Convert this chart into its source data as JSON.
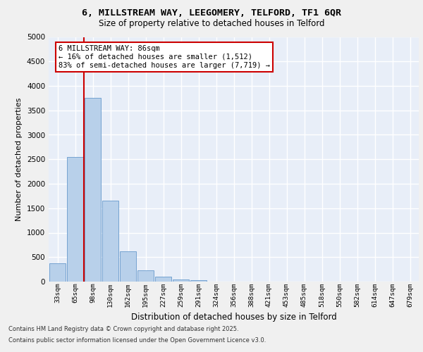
{
  "title_line1": "6, MILLSTREAM WAY, LEEGOMERY, TELFORD, TF1 6QR",
  "title_line2": "Size of property relative to detached houses in Telford",
  "xlabel": "Distribution of detached houses by size in Telford",
  "ylabel": "Number of detached properties",
  "categories": [
    "33sqm",
    "65sqm",
    "98sqm",
    "130sqm",
    "162sqm",
    "195sqm",
    "227sqm",
    "259sqm",
    "291sqm",
    "324sqm",
    "356sqm",
    "388sqm",
    "421sqm",
    "453sqm",
    "485sqm",
    "518sqm",
    "550sqm",
    "582sqm",
    "614sqm",
    "647sqm",
    "679sqm"
  ],
  "values": [
    380,
    2540,
    3760,
    1650,
    620,
    235,
    105,
    50,
    35,
    0,
    0,
    0,
    0,
    0,
    0,
    0,
    0,
    0,
    0,
    0,
    0
  ],
  "bar_color": "#b8d0ea",
  "bar_edge_color": "#6699cc",
  "ylim": [
    0,
    5000
  ],
  "yticks": [
    0,
    500,
    1000,
    1500,
    2000,
    2500,
    3000,
    3500,
    4000,
    4500,
    5000
  ],
  "vline_color": "#cc0000",
  "annotation_text": "6 MILLSTREAM WAY: 86sqm\n← 16% of detached houses are smaller (1,512)\n83% of semi-detached houses are larger (7,719) →",
  "annotation_box_color": "#cc0000",
  "background_color": "#e8eef8",
  "grid_color": "#ffffff",
  "footer_line1": "Contains HM Land Registry data © Crown copyright and database right 2025.",
  "footer_line2": "Contains public sector information licensed under the Open Government Licence v3.0."
}
